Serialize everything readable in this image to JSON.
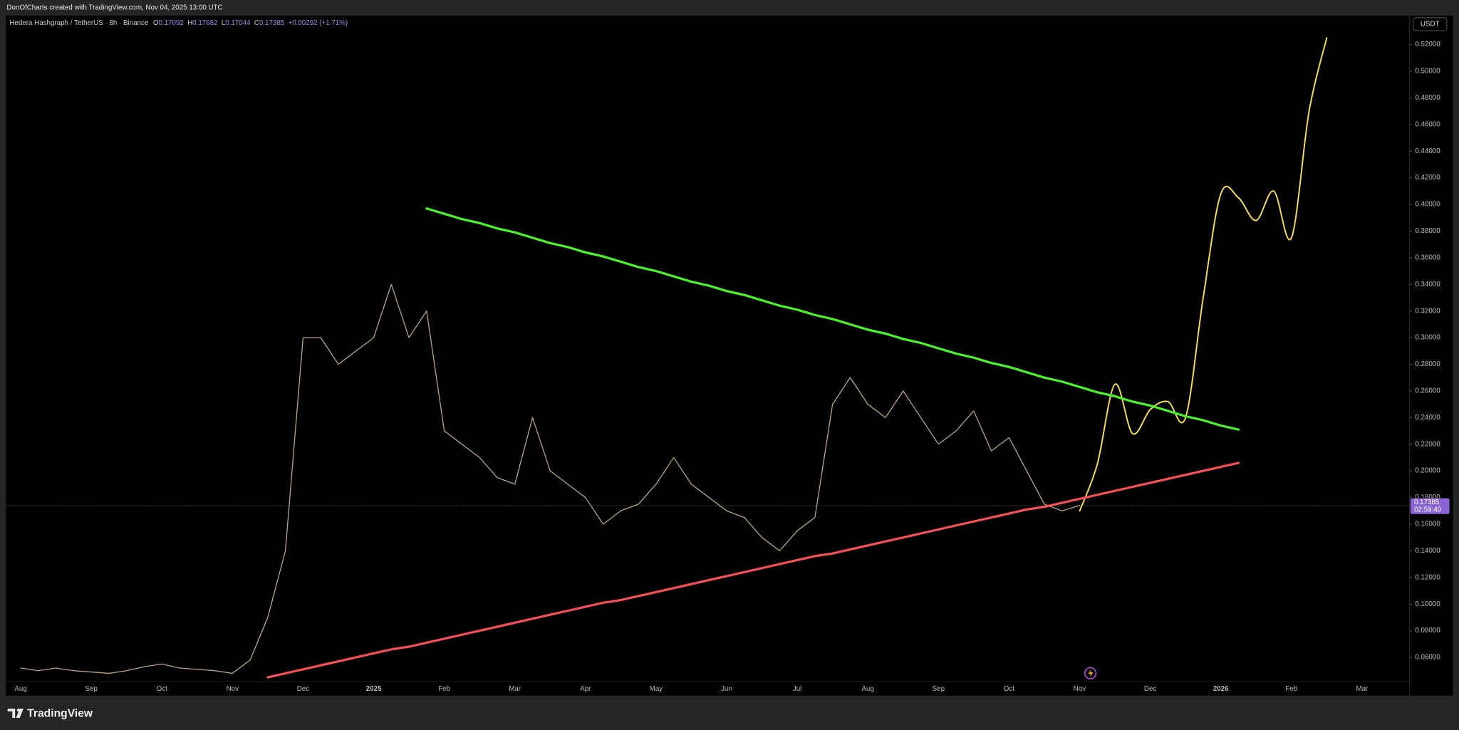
{
  "header": {
    "credit": "DonOfCharts created with TradingView.com, Nov 04, 2025 13:00 UTC"
  },
  "chart_data": {
    "type": "line",
    "title": "Hedera Hashgraph / TetherUS · 8h · Binance",
    "ohlc": {
      "labels": [
        "O",
        "H",
        "L",
        "C"
      ],
      "values": [
        0.17092,
        0.17682,
        0.17044,
        0.17385
      ]
    },
    "change": "+0.00292 (+1.71%)",
    "currency": "USDT",
    "countdown": "02:59:40",
    "categories": [
      "Aug",
      null,
      null,
      null,
      "Sep",
      null,
      null,
      null,
      "Oct",
      null,
      null,
      null,
      "Nov",
      null,
      null,
      null,
      "Dec",
      null,
      null,
      null,
      "2025",
      null,
      null,
      null,
      "Feb",
      null,
      null,
      null,
      "Mar",
      null,
      null,
      null,
      "Apr",
      null,
      null,
      null,
      "May",
      null,
      null,
      null,
      "Jun",
      null,
      null,
      null,
      "Jul",
      null,
      null,
      null,
      "Aug",
      null,
      null,
      null,
      "Sep",
      null,
      null,
      null,
      "Oct",
      null,
      null,
      null,
      "Nov",
      null,
      null,
      null,
      "Dec",
      null,
      null,
      null,
      "2026",
      null,
      null,
      null,
      "Feb",
      null,
      null,
      null,
      "Mar"
    ],
    "series": [
      {
        "color": "#b8a587",
        "width": 1,
        "values": [
          0.052,
          0.05,
          0.052,
          0.05,
          0.049,
          0.048,
          0.05,
          0.053,
          0.055,
          0.052,
          0.051,
          0.05,
          0.048,
          0.058,
          0.09,
          0.14,
          0.3,
          0.3,
          0.28,
          0.29,
          0.3,
          0.34,
          0.3,
          0.32,
          0.23,
          0.22,
          0.21,
          0.195,
          0.19,
          0.24,
          0.2,
          0.19,
          0.18,
          0.16,
          0.17,
          0.175,
          0.19,
          0.21,
          0.19,
          0.18,
          0.17,
          0.165,
          0.15,
          0.14,
          0.155,
          0.165,
          0.25,
          0.27,
          0.25,
          0.24,
          0.26,
          0.24,
          0.22,
          0.23,
          0.245,
          0.215,
          0.225,
          0.2,
          0.175,
          0.17,
          0.174,
          null,
          null,
          null,
          null,
          null,
          null,
          null,
          null,
          null,
          null,
          null,
          null,
          null,
          null,
          null,
          null
        ]
      },
      {
        "color": "#f2dd5c",
        "width": 1.5,
        "smooth": true,
        "values": [
          null,
          null,
          null,
          null,
          null,
          null,
          null,
          null,
          null,
          null,
          null,
          null,
          null,
          null,
          null,
          null,
          null,
          null,
          null,
          null,
          null,
          null,
          null,
          null,
          null,
          null,
          null,
          null,
          null,
          null,
          null,
          null,
          null,
          null,
          null,
          null,
          null,
          null,
          null,
          null,
          null,
          null,
          null,
          null,
          null,
          null,
          null,
          null,
          null,
          null,
          null,
          null,
          null,
          null,
          null,
          null,
          null,
          null,
          null,
          null,
          0.17,
          0.205,
          0.265,
          0.228,
          0.246,
          0.252,
          0.24,
          0.33,
          0.408,
          0.405,
          0.388,
          0.41,
          0.375,
          0.47,
          0.525,
          null,
          null
        ]
      },
      {
        "color": "#4ef12e",
        "width": 2.5,
        "values": [
          null,
          null,
          null,
          null,
          null,
          null,
          null,
          null,
          null,
          null,
          null,
          null,
          null,
          null,
          null,
          null,
          null,
          null,
          null,
          null,
          null,
          null,
          null,
          0.397,
          0.393,
          0.389,
          0.386,
          0.382,
          0.379,
          0.375,
          0.371,
          0.368,
          0.364,
          0.361,
          0.357,
          0.353,
          0.35,
          0.346,
          0.342,
          0.339,
          0.335,
          0.332,
          0.328,
          0.324,
          0.321,
          0.317,
          0.314,
          0.31,
          0.306,
          0.303,
          0.299,
          0.296,
          0.292,
          0.288,
          0.285,
          0.281,
          0.278,
          0.274,
          0.27,
          0.267,
          0.263,
          0.259,
          0.256,
          0.252,
          0.249,
          0.245,
          0.241,
          0.238,
          0.234,
          0.231,
          null,
          null,
          null,
          null,
          null,
          null,
          null
        ]
      },
      {
        "color": "#f2515a",
        "width": 2.5,
        "values": [
          null,
          null,
          null,
          null,
          null,
          null,
          null,
          null,
          null,
          null,
          null,
          null,
          null,
          null,
          0.045,
          0.048,
          0.051,
          0.054,
          0.057,
          0.06,
          0.063,
          0.066,
          0.068,
          0.071,
          0.074,
          0.077,
          0.08,
          0.083,
          0.086,
          0.089,
          0.092,
          0.095,
          0.098,
          0.101,
          0.103,
          0.106,
          0.109,
          0.112,
          0.115,
          0.118,
          0.121,
          0.124,
          0.127,
          0.13,
          0.133,
          0.136,
          0.138,
          0.141,
          0.144,
          0.147,
          0.15,
          0.153,
          0.156,
          0.159,
          0.162,
          0.165,
          0.168,
          0.171,
          0.173,
          0.176,
          0.179,
          0.182,
          0.185,
          0.188,
          0.191,
          0.194,
          0.197,
          0.2,
          0.203,
          0.206,
          null,
          null,
          null,
          null,
          null,
          null,
          null
        ]
      }
    ],
    "ylim": [
      0.0313,
      0.5416
    ],
    "yticks": [
      {
        "value": 0.06,
        "label": "0.06000"
      },
      {
        "value": 0.08,
        "label": "0.08000"
      },
      {
        "value": 0.1,
        "label": "0.10000"
      },
      {
        "value": 0.12,
        "label": "0.12000"
      },
      {
        "value": 0.14,
        "label": "0.14000"
      },
      {
        "value": 0.16,
        "label": "0.16000"
      },
      {
        "value": 0.18,
        "label": "0.18000"
      },
      {
        "value": 0.2,
        "label": "0.20000"
      },
      {
        "value": 0.22,
        "label": "0.22000"
      },
      {
        "value": 0.24,
        "label": "0.24000"
      },
      {
        "value": 0.26,
        "label": "0.26000"
      },
      {
        "value": 0.28,
        "label": "0.28000"
      },
      {
        "value": 0.3,
        "label": "0.30000"
      },
      {
        "value": 0.32,
        "label": "0.32000"
      },
      {
        "value": 0.34,
        "label": "0.34000"
      },
      {
        "value": 0.36,
        "label": "0.36000"
      },
      {
        "value": 0.38,
        "label": "0.38000"
      },
      {
        "value": 0.4,
        "label": "0.40000"
      },
      {
        "value": 0.42,
        "label": "0.42000"
      },
      {
        "value": 0.44,
        "label": "0.44000"
      },
      {
        "value": 0.46,
        "label": "0.46000"
      },
      {
        "value": 0.48,
        "label": "0.48000"
      },
      {
        "value": 0.5,
        "label": "0.50000"
      },
      {
        "value": 0.52,
        "label": "0.52000"
      }
    ],
    "grid": false
  },
  "footer": {
    "brand": "TradingView"
  }
}
